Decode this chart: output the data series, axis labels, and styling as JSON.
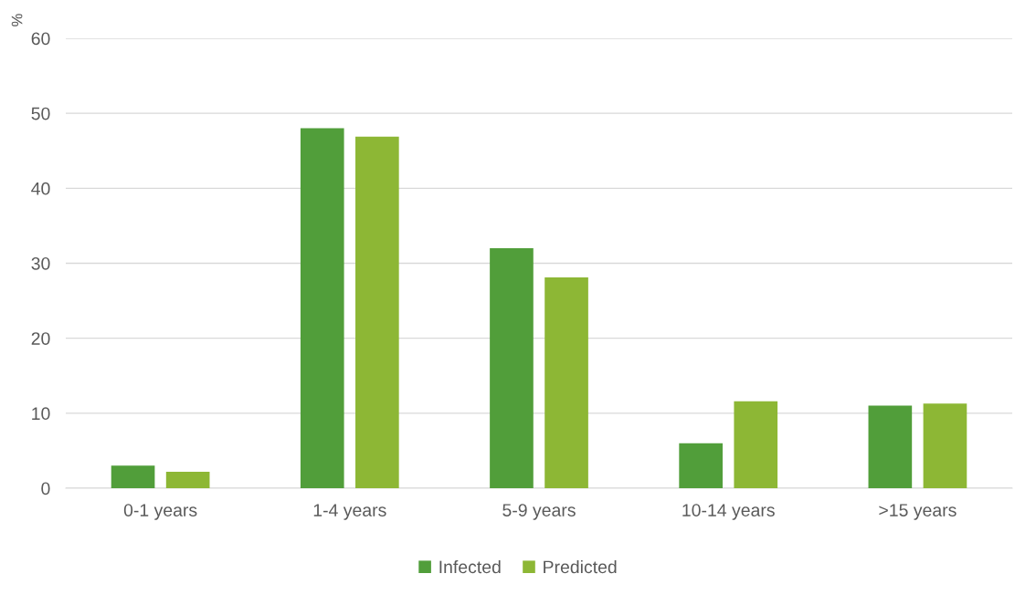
{
  "chart_data": {
    "type": "bar",
    "ylabel": "%",
    "categories": [
      "0-1 years",
      "1-4 years",
      "5-9 years",
      "10-14 years",
      ">15 years"
    ],
    "series": [
      {
        "name": "Infected",
        "color": "#519e3a",
        "values": [
          3,
          48,
          32,
          6,
          11
        ]
      },
      {
        "name": "Predicted",
        "color": "#8db735",
        "values": [
          2.2,
          46.9,
          28.1,
          11.6,
          11.3
        ]
      }
    ],
    "ylim": [
      0,
      60
    ],
    "yticks": [
      0,
      10,
      20,
      30,
      40,
      50,
      60
    ],
    "grid": "y",
    "legend": "bottom"
  }
}
